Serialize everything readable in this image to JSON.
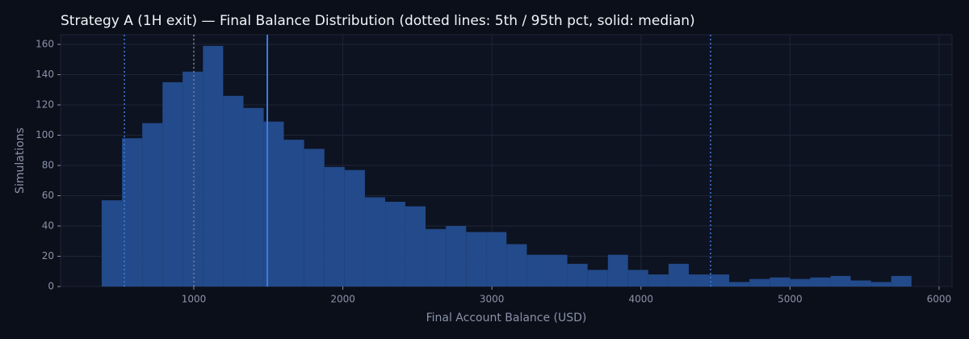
{
  "chart_data": {
    "type": "histogram",
    "title": "Strategy A (1H exit) — Final Balance Distribution (dotted lines: 5th / 95th pct, solid: median)",
    "x_label": "Final Account Balance (USD)",
    "y_label": "Simulations",
    "bins": [
      382,
      518,
      654,
      790,
      925,
      1061,
      1197,
      1333,
      1469,
      1604,
      1740,
      1876,
      2012,
      2148,
      2284,
      2419,
      2555,
      2691,
      2827,
      2963,
      3098,
      3234,
      3370,
      3506,
      3642,
      3778,
      3913,
      4049,
      4185,
      4321,
      4457,
      4592,
      4728,
      4864,
      5000,
      5136,
      5272,
      5407,
      5543,
      5679,
      5815
    ],
    "values": [
      57,
      98,
      108,
      135,
      142,
      159,
      126,
      118,
      109,
      97,
      91,
      79,
      77,
      59,
      56,
      53,
      38,
      40,
      36,
      36,
      28,
      21,
      21,
      15,
      11,
      21,
      11,
      8,
      15,
      8,
      8,
      3,
      5,
      6,
      5,
      6,
      7,
      4,
      3,
      7
    ],
    "color": "#234a8a",
    "reference_lines": [
      {
        "value": 534,
        "style": "dotted",
        "color": "#3d7be0"
      },
      {
        "value": 1000,
        "style": "dotted",
        "color": "#7a8194"
      },
      {
        "value": 1493,
        "style": "solid",
        "color": "#3d7be0"
      },
      {
        "value": 4467,
        "style": "dotted",
        "color": "#3d7be0"
      }
    ],
    "xlim": [
      106,
      6087
    ],
    "ylim": [
      0,
      166.4
    ],
    "xticks": [
      1000,
      2000,
      3000,
      4000,
      5000,
      6000
    ],
    "yticks": [
      0,
      20,
      40,
      60,
      80,
      100,
      120,
      140,
      160
    ],
    "grid": true
  }
}
